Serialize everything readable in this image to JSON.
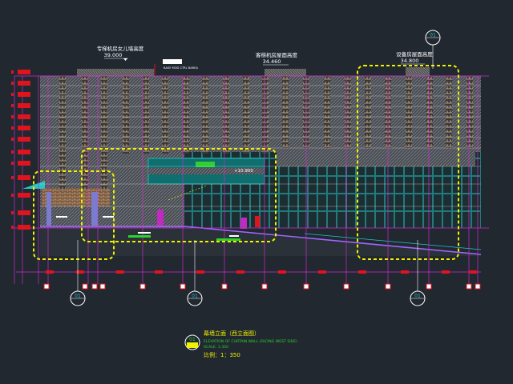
{
  "drawing": {
    "top_annotations": [
      {
        "text": "专梯机房女儿墙高度",
        "value": "39.000"
      },
      {
        "text": "客梯机房屋面高度",
        "value": "34.460"
      },
      {
        "text": "设备房屋面高度",
        "value": "34.800"
      }
    ],
    "note_tag": "BASE MOD CTRL BAREA",
    "mid_level": "+10.900",
    "callout_id": "01",
    "title_block": {
      "badge": "01",
      "title_cn": "幕墙立面（西立面图）",
      "title_en": "ELEVATION OF CURTAIN WALL (FACING WEST SIDE)",
      "scale_en": "SCALE: 1:350",
      "scale_cn": "比例：1：350"
    },
    "colors": {
      "background": "#212830",
      "grid_magenta": "#d02ad0",
      "highlight_yellow": "#f2f200",
      "glass_cyan": "#27c6c6",
      "brick_tan": "#c9a27a",
      "marker_red": "#e0141e",
      "text_yellow": "#f2f200"
    }
  }
}
